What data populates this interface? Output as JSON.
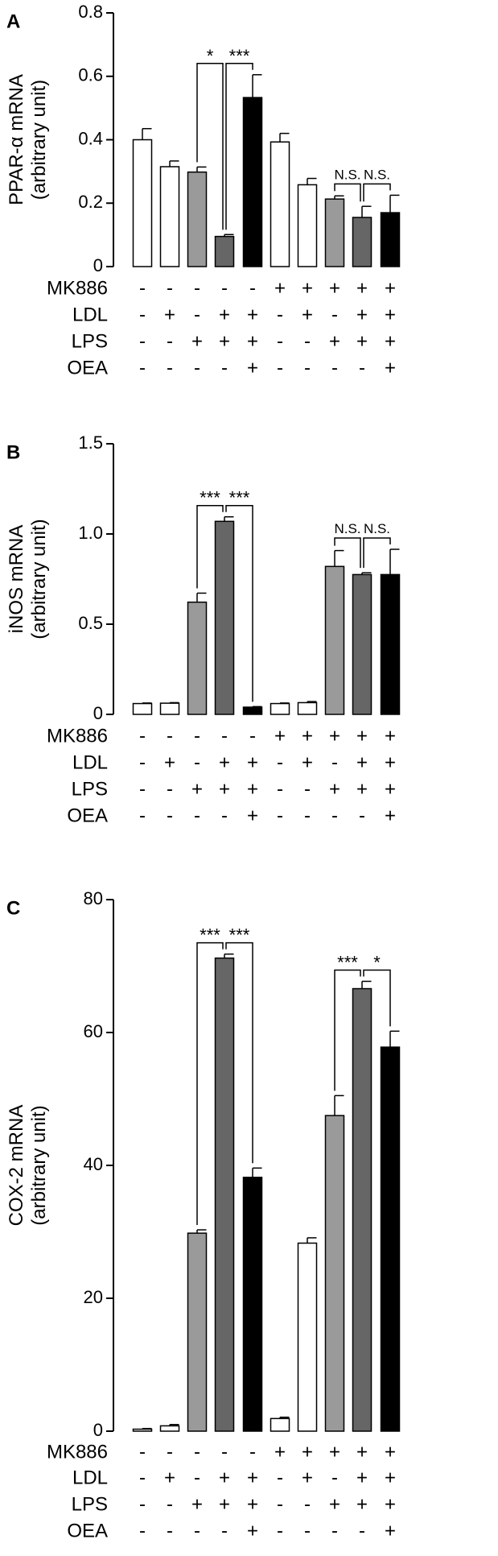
{
  "colors": {
    "white": "#ffffff",
    "lightgray": "#9a9a9a",
    "darkgray": "#666666",
    "black": "#000000"
  },
  "bar_fills": [
    "white",
    "white",
    "lightgray",
    "darkgray",
    "black",
    "white",
    "white",
    "lightgray",
    "darkgray",
    "black"
  ],
  "treatments": [
    {
      "name": "MK886",
      "signs": [
        "-",
        "-",
        "-",
        "-",
        "-",
        "+",
        "+",
        "+",
        "+",
        "+"
      ]
    },
    {
      "name": "LDL",
      "signs": [
        "-",
        "+",
        "-",
        "+",
        "+",
        "-",
        "+",
        "-",
        "+",
        "+"
      ]
    },
    {
      "name": "LPS",
      "signs": [
        "-",
        "-",
        "+",
        "+",
        "+",
        "-",
        "-",
        "+",
        "+",
        "+"
      ]
    },
    {
      "name": "OEA",
      "signs": [
        "-",
        "-",
        "-",
        "-",
        "+",
        "-",
        "-",
        "-",
        "-",
        "+"
      ]
    }
  ],
  "chart_data": [
    {
      "panel": "A",
      "type": "bar",
      "ylabel_line1": "PPAR-α mRNA",
      "ylabel_line2": "(arbitrary unit)",
      "ylim": [
        0,
        0.8
      ],
      "yticks": [
        "0",
        "0.2",
        "0.4",
        "0.6",
        "0.8"
      ],
      "ytick_values": [
        0,
        0.2,
        0.4,
        0.6,
        0.8
      ],
      "values": [
        0.4,
        0.315,
        0.298,
        0.095,
        0.533,
        0.393,
        0.258,
        0.213,
        0.155,
        0.17
      ],
      "errors": [
        0.035,
        0.018,
        0.016,
        0.006,
        0.072,
        0.027,
        0.02,
        0.01,
        0.035,
        0.055
      ],
      "comparisons": [
        {
          "from": 2,
          "to": 3,
          "label": "*"
        },
        {
          "from": 3,
          "to": 4,
          "label": "***"
        },
        {
          "from": 7,
          "to": 8,
          "label": "N.S."
        },
        {
          "from": 8,
          "to": 9,
          "label": "N.S."
        }
      ]
    },
    {
      "panel": "B",
      "type": "bar",
      "ylabel_line1": "iNOS mRNA",
      "ylabel_line2": "(arbitrary unit)",
      "ylim": [
        0,
        1.5
      ],
      "yticks": [
        "0",
        "0.5",
        "1.0",
        "1.5"
      ],
      "ytick_values": [
        0,
        0.5,
        1.0,
        1.5
      ],
      "values": [
        0.06,
        0.062,
        0.622,
        1.07,
        0.04,
        0.06,
        0.065,
        0.82,
        0.775,
        0.775
      ],
      "errors": [
        0.003,
        0.003,
        0.05,
        0.025,
        0.003,
        0.003,
        0.006,
        0.088,
        0.01,
        0.14
      ],
      "comparisons": [
        {
          "from": 2,
          "to": 3,
          "label": "***"
        },
        {
          "from": 3,
          "to": 4,
          "label": "***"
        },
        {
          "from": 7,
          "to": 8,
          "label": "N.S."
        },
        {
          "from": 8,
          "to": 9,
          "label": "N.S."
        }
      ]
    },
    {
      "panel": "C",
      "type": "bar",
      "ylabel_line1": "COX-2 mRNA",
      "ylabel_line2": "(arbitrary unit)",
      "ylim": [
        0,
        80
      ],
      "yticks": [
        "0",
        "20",
        "40",
        "60",
        "80"
      ],
      "ytick_values": [
        0,
        20,
        40,
        60,
        80
      ],
      "values": [
        0.3,
        0.8,
        29.8,
        71.2,
        38.2,
        1.9,
        28.3,
        47.5,
        66.6,
        57.8
      ],
      "errors": [
        0.1,
        0.2,
        0.5,
        0.6,
        1.4,
        0.2,
        0.8,
        3.0,
        1.1,
        2.4
      ],
      "comparisons": [
        {
          "from": 2,
          "to": 3,
          "label": "***"
        },
        {
          "from": 3,
          "to": 4,
          "label": "***"
        },
        {
          "from": 7,
          "to": 8,
          "label": "***"
        },
        {
          "from": 8,
          "to": 9,
          "label": "*"
        }
      ]
    }
  ]
}
